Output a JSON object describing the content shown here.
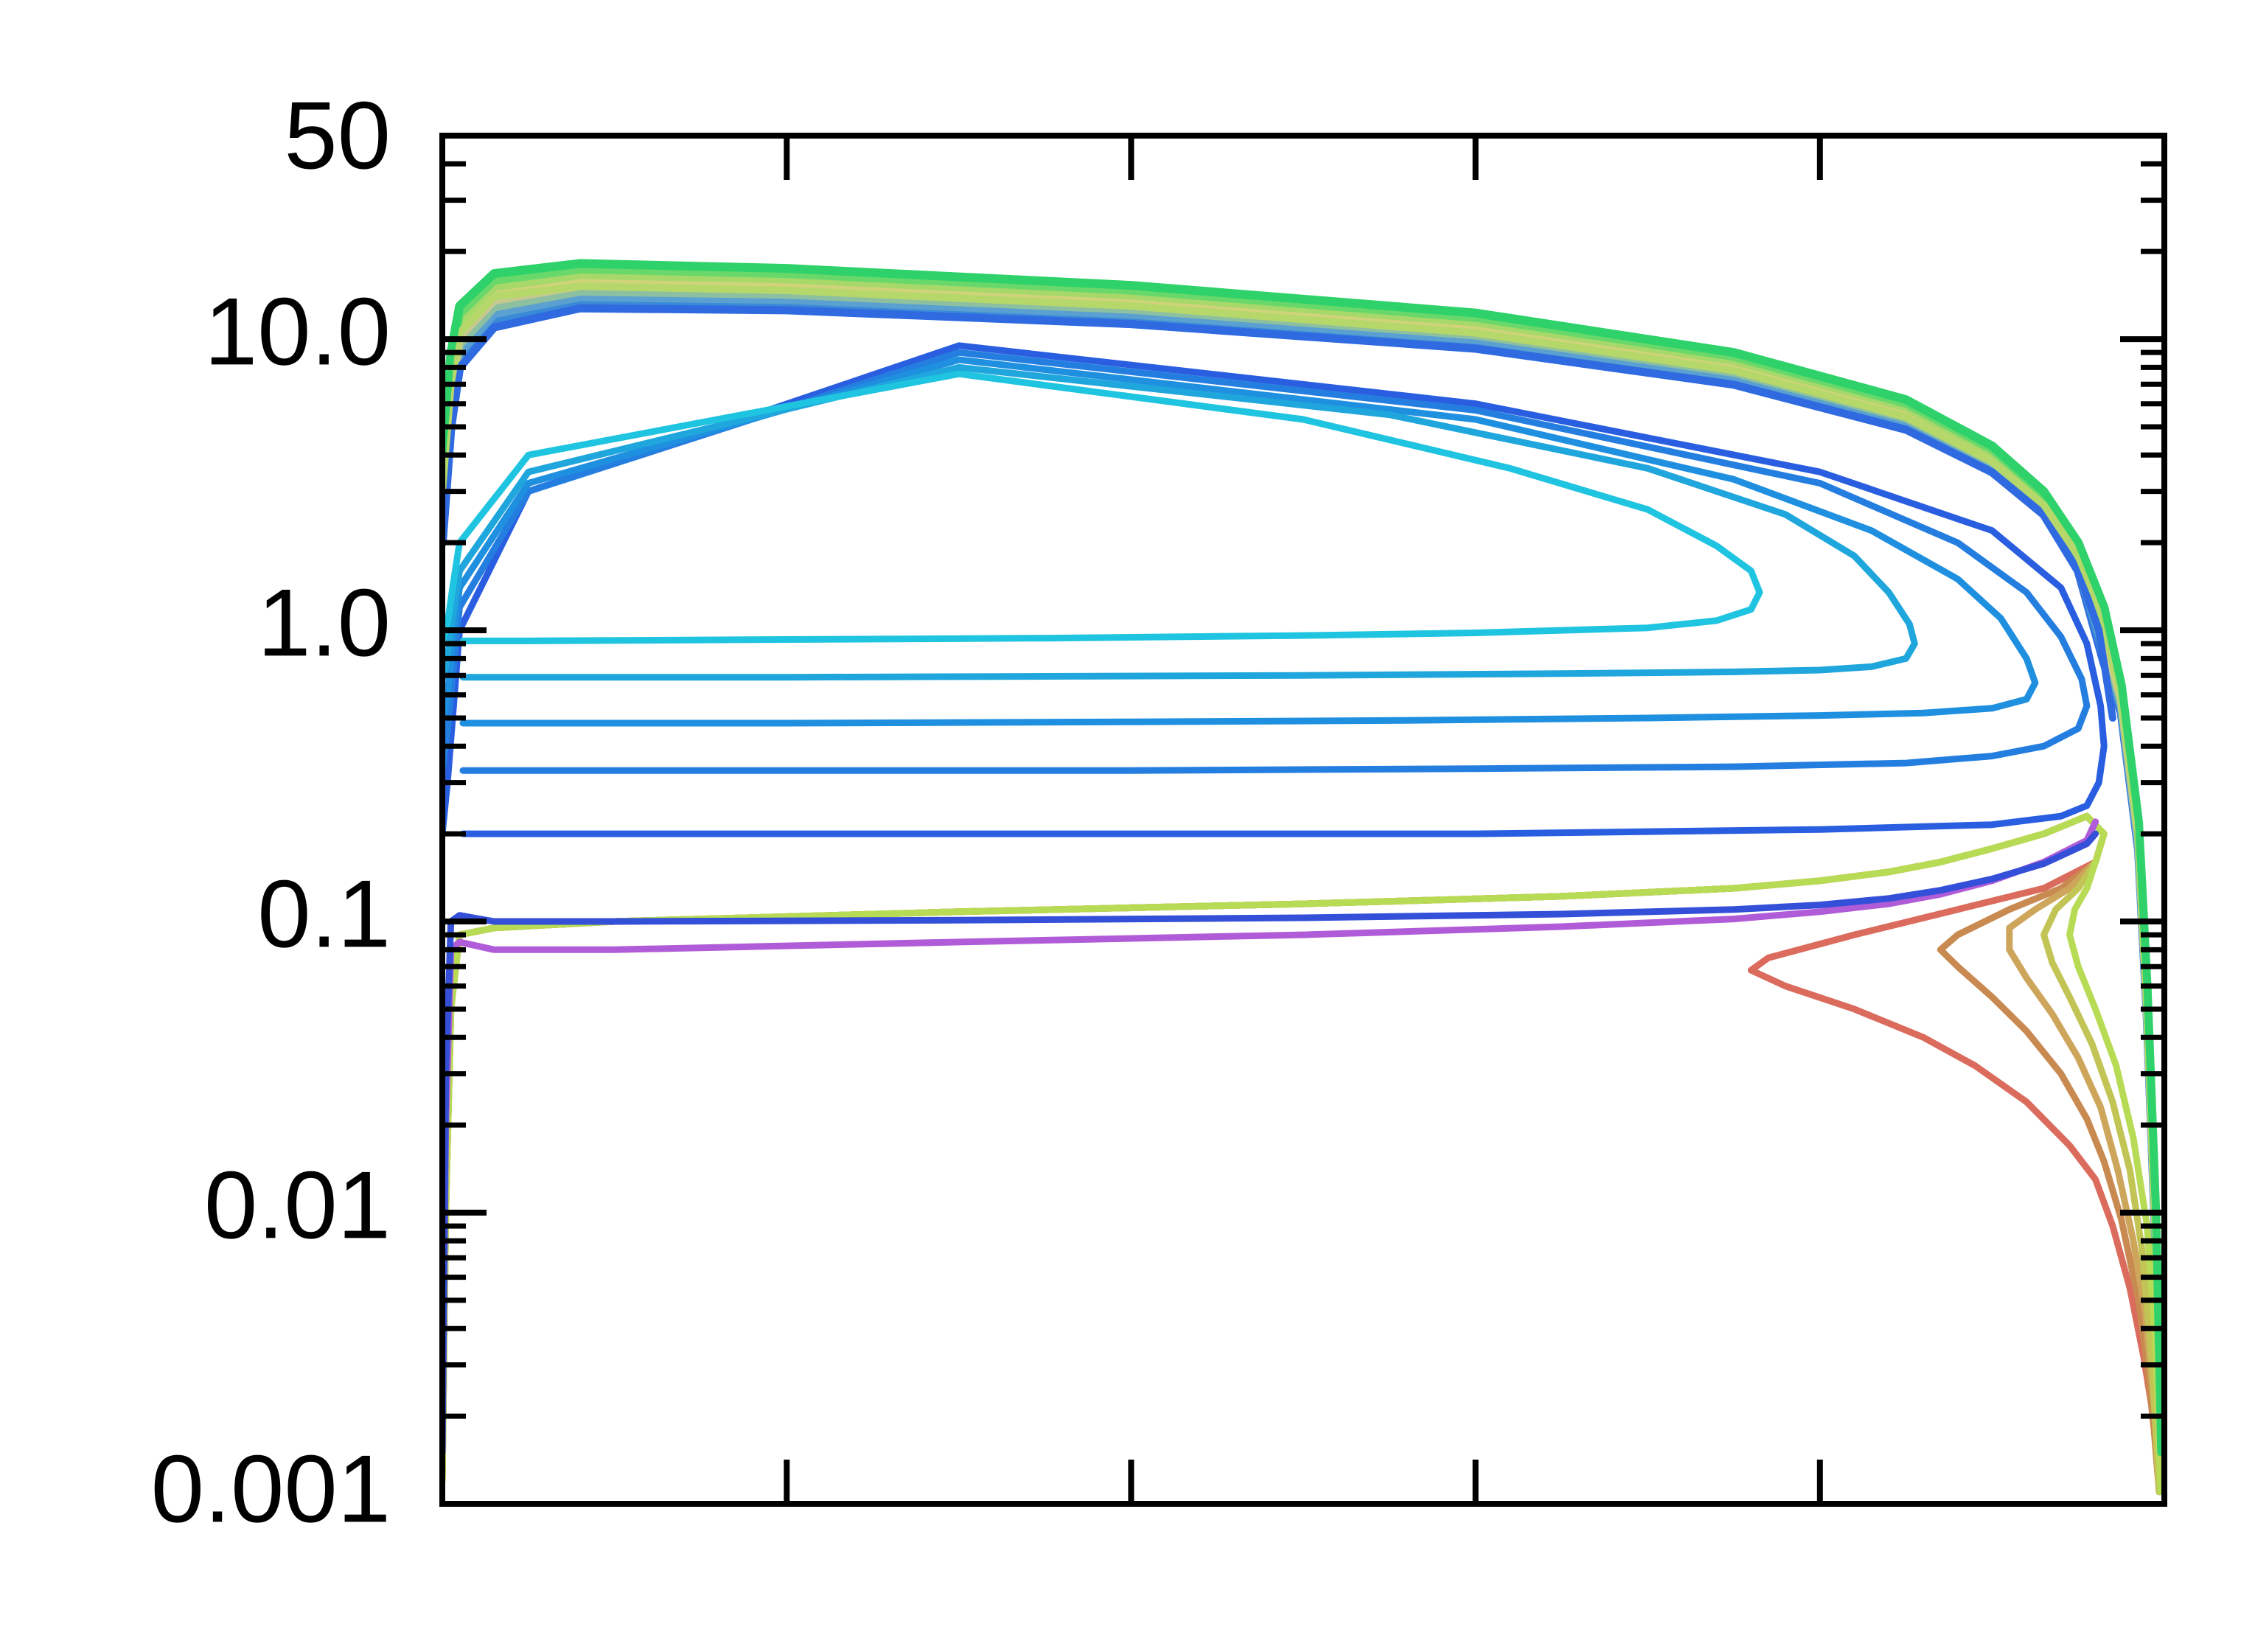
{
  "chart_data": {
    "type": "line",
    "title": "",
    "xlabel": "",
    "ylabel": "",
    "y_scale": "log",
    "ylim": [
      0.001,
      50
    ],
    "xlim": [
      0,
      1
    ],
    "grid": false,
    "legend": "none",
    "y_tick_labels": [
      {
        "value": 50,
        "label": "50"
      },
      {
        "value": 10,
        "label": "10.0"
      },
      {
        "value": 1,
        "label": "1.0"
      },
      {
        "value": 0.1,
        "label": "0.1"
      },
      {
        "value": 0.01,
        "label": "0.01"
      },
      {
        "value": 0.001,
        "label": "0.001"
      }
    ],
    "x_major_ticks": [
      0,
      0.2,
      0.4,
      0.6,
      0.8,
      1.0
    ],
    "series": [
      {
        "color": "#db6b5c",
        "x": [
          0.0,
          0.002,
          0.005,
          0.01,
          0.03,
          0.1,
          0.3,
          0.5,
          0.65,
          0.75,
          0.8,
          0.84,
          0.87,
          0.9,
          0.93,
          0.955,
          0.965,
          0.96,
          0.93,
          0.88,
          0.82,
          0.77,
          0.76,
          0.78,
          0.82,
          0.86,
          0.89,
          0.92,
          0.945,
          0.96,
          0.97,
          0.98,
          0.988,
          0.993,
          0.996,
          0.998
        ],
        "y": [
          0.0012,
          0.01,
          0.05,
          0.09,
          0.095,
          0.1,
          0.108,
          0.115,
          0.122,
          0.13,
          0.138,
          0.148,
          0.16,
          0.178,
          0.2,
          0.23,
          0.2,
          0.16,
          0.13,
          0.11,
          0.09,
          0.075,
          0.068,
          0.06,
          0.05,
          0.04,
          0.032,
          0.024,
          0.017,
          0.013,
          0.009,
          0.0055,
          0.0032,
          0.0021,
          0.0015,
          0.0011
        ]
      },
      {
        "color": "#c98a52",
        "x": [
          0.0,
          0.002,
          0.005,
          0.01,
          0.03,
          0.1,
          0.3,
          0.5,
          0.65,
          0.75,
          0.8,
          0.84,
          0.87,
          0.9,
          0.93,
          0.955,
          0.965,
          0.96,
          0.94,
          0.91,
          0.88,
          0.87,
          0.88,
          0.9,
          0.92,
          0.94,
          0.955,
          0.965,
          0.975,
          0.985,
          0.99,
          0.994,
          0.997
        ],
        "y": [
          0.0012,
          0.01,
          0.05,
          0.09,
          0.095,
          0.1,
          0.108,
          0.115,
          0.122,
          0.13,
          0.138,
          0.148,
          0.16,
          0.178,
          0.2,
          0.23,
          0.2,
          0.16,
          0.13,
          0.11,
          0.09,
          0.08,
          0.07,
          0.055,
          0.042,
          0.03,
          0.021,
          0.015,
          0.0095,
          0.005,
          0.003,
          0.0018,
          0.0011
        ]
      },
      {
        "color": "#cda65c",
        "x": [
          0.0,
          0.002,
          0.005,
          0.01,
          0.03,
          0.1,
          0.3,
          0.5,
          0.65,
          0.75,
          0.8,
          0.84,
          0.87,
          0.9,
          0.93,
          0.955,
          0.965,
          0.96,
          0.945,
          0.925,
          0.91,
          0.91,
          0.92,
          0.935,
          0.95,
          0.963,
          0.973,
          0.982,
          0.989,
          0.994,
          0.997
        ],
        "y": [
          0.0012,
          0.01,
          0.05,
          0.09,
          0.095,
          0.1,
          0.108,
          0.115,
          0.122,
          0.13,
          0.138,
          0.148,
          0.16,
          0.178,
          0.2,
          0.23,
          0.2,
          0.16,
          0.13,
          0.11,
          0.095,
          0.08,
          0.064,
          0.048,
          0.034,
          0.023,
          0.014,
          0.008,
          0.0045,
          0.0022,
          0.0011
        ]
      },
      {
        "color": "#c2c455",
        "x": [
          0.0,
          0.002,
          0.005,
          0.01,
          0.03,
          0.1,
          0.3,
          0.5,
          0.65,
          0.75,
          0.8,
          0.84,
          0.87,
          0.9,
          0.93,
          0.955,
          0.965,
          0.96,
          0.95,
          0.937,
          0.93,
          0.935,
          0.945,
          0.958,
          0.97,
          0.98,
          0.987,
          0.993,
          0.997
        ],
        "y": [
          0.0012,
          0.01,
          0.05,
          0.09,
          0.095,
          0.1,
          0.108,
          0.115,
          0.122,
          0.13,
          0.138,
          0.148,
          0.16,
          0.178,
          0.2,
          0.23,
          0.2,
          0.16,
          0.13,
          0.11,
          0.09,
          0.072,
          0.055,
          0.038,
          0.024,
          0.014,
          0.0075,
          0.003,
          0.0011
        ]
      },
      {
        "color": "#b8db55",
        "x": [
          0.0,
          0.002,
          0.005,
          0.01,
          0.03,
          0.1,
          0.3,
          0.5,
          0.65,
          0.75,
          0.8,
          0.84,
          0.87,
          0.9,
          0.93,
          0.955,
          0.965,
          0.96,
          0.955,
          0.948,
          0.945,
          0.95,
          0.96,
          0.972,
          0.982,
          0.99,
          0.995,
          0.998
        ],
        "y": [
          0.0012,
          0.01,
          0.05,
          0.09,
          0.095,
          0.1,
          0.108,
          0.115,
          0.122,
          0.13,
          0.138,
          0.148,
          0.16,
          0.178,
          0.2,
          0.23,
          0.2,
          0.16,
          0.13,
          0.11,
          0.09,
          0.07,
          0.05,
          0.032,
          0.018,
          0.009,
          0.0035,
          0.0011
        ]
      },
      {
        "color": "#b05cd8",
        "x": [
          0.0,
          0.002,
          0.005,
          0.01,
          0.03,
          0.1,
          0.3,
          0.5,
          0.65,
          0.75,
          0.8,
          0.84,
          0.87,
          0.9,
          0.93,
          0.955,
          0.96
        ],
        "y": [
          0.0015,
          0.02,
          0.08,
          0.085,
          0.08,
          0.08,
          0.085,
          0.09,
          0.096,
          0.102,
          0.108,
          0.115,
          0.124,
          0.138,
          0.16,
          0.19,
          0.22
        ]
      },
      {
        "color": "#3450d8",
        "x": [
          0.0,
          0.002,
          0.005,
          0.01,
          0.03,
          0.1,
          0.3,
          0.5,
          0.65,
          0.75,
          0.8,
          0.84,
          0.87,
          0.9,
          0.93,
          0.955,
          0.96
        ],
        "y": [
          0.0015,
          0.03,
          0.1,
          0.105,
          0.1,
          0.1,
          0.101,
          0.103,
          0.106,
          0.11,
          0.114,
          0.12,
          0.128,
          0.14,
          0.158,
          0.185,
          0.2
        ]
      },
      {
        "color": "#2a5ee0",
        "x": [
          0.0,
          0.003,
          0.006,
          0.01,
          0.05,
          0.3,
          0.6,
          0.8,
          0.9,
          0.94,
          0.955,
          0.963,
          0.965,
          0.962,
          0.955,
          0.94,
          0.9,
          0.8,
          0.6,
          0.4,
          0.2,
          0.05,
          0.012
        ],
        "y": [
          0.2,
          0.3,
          0.5,
          1.0,
          3.0,
          9.5,
          6.0,
          3.5,
          2.2,
          1.4,
          0.9,
          0.55,
          0.4,
          0.3,
          0.25,
          0.23,
          0.215,
          0.207,
          0.2,
          0.2,
          0.2,
          0.2,
          0.2
        ]
      },
      {
        "color": "#247ee0",
        "x": [
          0.0,
          0.003,
          0.006,
          0.01,
          0.05,
          0.3,
          0.6,
          0.8,
          0.88,
          0.92,
          0.94,
          0.952,
          0.955,
          0.95,
          0.93,
          0.9,
          0.85,
          0.75,
          0.6,
          0.4,
          0.2,
          0.05,
          0.012
        ],
        "y": [
          0.33,
          0.45,
          0.7,
          1.2,
          3.0,
          9.0,
          5.7,
          3.2,
          2.0,
          1.35,
          0.95,
          0.68,
          0.55,
          0.46,
          0.4,
          0.37,
          0.35,
          0.34,
          0.335,
          0.33,
          0.33,
          0.33,
          0.33
        ]
      },
      {
        "color": "#1f8fe0",
        "x": [
          0.0,
          0.003,
          0.006,
          0.01,
          0.05,
          0.3,
          0.6,
          0.75,
          0.83,
          0.88,
          0.905,
          0.92,
          0.925,
          0.92,
          0.9,
          0.86,
          0.8,
          0.7,
          0.55,
          0.4,
          0.2,
          0.05,
          0.012
        ],
        "y": [
          0.48,
          0.6,
          0.9,
          1.4,
          3.2,
          8.5,
          5.3,
          3.3,
          2.2,
          1.5,
          1.1,
          0.8,
          0.66,
          0.58,
          0.54,
          0.52,
          0.51,
          0.5,
          0.49,
          0.485,
          0.48,
          0.48,
          0.48
        ]
      },
      {
        "color": "#1fa6dc",
        "x": [
          0.0,
          0.003,
          0.006,
          0.01,
          0.05,
          0.3,
          0.55,
          0.7,
          0.78,
          0.82,
          0.84,
          0.852,
          0.855,
          0.85,
          0.83,
          0.8,
          0.75,
          0.65,
          0.5,
          0.35,
          0.2,
          0.05,
          0.012
        ],
        "y": [
          0.68,
          0.8,
          1.1,
          1.6,
          3.5,
          8.0,
          5.5,
          3.6,
          2.5,
          1.8,
          1.35,
          1.05,
          0.9,
          0.8,
          0.75,
          0.73,
          0.72,
          0.71,
          0.7,
          0.695,
          0.69,
          0.69,
          0.69
        ]
      },
      {
        "color": "#1fc4e0",
        "x": [
          0.0,
          0.003,
          0.006,
          0.01,
          0.05,
          0.3,
          0.5,
          0.62,
          0.7,
          0.74,
          0.76,
          0.765,
          0.76,
          0.74,
          0.7,
          0.6,
          0.5,
          0.35,
          0.2,
          0.05,
          0.012
        ],
        "y": [
          0.9,
          1.05,
          1.4,
          2.0,
          4.0,
          7.6,
          5.3,
          3.6,
          2.6,
          1.95,
          1.6,
          1.35,
          1.18,
          1.08,
          1.02,
          0.98,
          0.96,
          0.94,
          0.93,
          0.92,
          0.92
        ]
      },
      {
        "color": "#2f6ae0",
        "x": [
          0.0,
          0.005,
          0.01,
          0.03,
          0.08,
          0.2,
          0.4,
          0.6,
          0.75,
          0.85,
          0.9,
          0.93,
          0.95,
          0.962,
          0.97
        ],
        "y": [
          2.0,
          5.0,
          8.0,
          11.0,
          12.8,
          12.6,
          11.3,
          9.3,
          7.0,
          4.9,
          3.5,
          2.5,
          1.6,
          1.0,
          0.5
        ]
      },
      {
        "color": "#b6d86a",
        "x": [
          0.0,
          0.005,
          0.01,
          0.03,
          0.08,
          0.2,
          0.4,
          0.6,
          0.75,
          0.85,
          0.9,
          0.93,
          0.95,
          0.965,
          0.975,
          0.985,
          0.99,
          0.995,
          0.998
        ],
        "y": [
          3.0,
          7.0,
          10.5,
          14.0,
          15.2,
          14.7,
          13.0,
          10.5,
          7.8,
          5.4,
          3.8,
          2.7,
          1.8,
          1.1,
          0.6,
          0.2,
          0.05,
          0.008,
          0.0015
        ]
      },
      {
        "color": "#2fd26a",
        "x": [
          0.0,
          0.005,
          0.01,
          0.03,
          0.08,
          0.2,
          0.4,
          0.6,
          0.75,
          0.85,
          0.9,
          0.93,
          0.95,
          0.965,
          0.975,
          0.985,
          0.99,
          0.995,
          0.998
        ],
        "y": [
          4.0,
          9.0,
          13.0,
          16.8,
          18.2,
          17.5,
          15.3,
          12.3,
          9.0,
          6.2,
          4.3,
          3.0,
          2.0,
          1.2,
          0.65,
          0.22,
          0.06,
          0.01,
          0.0015
        ]
      }
    ],
    "band": {
      "colors": [
        "#2f6ae0",
        "#3b8ad8",
        "#5aa0d0",
        "#8cc0a0",
        "#c6c890",
        "#cfd37a",
        "#a6d86a",
        "#68d86a",
        "#2fd26a"
      ],
      "description_y_low": 12.5,
      "description_y_high": 18.2
    }
  }
}
